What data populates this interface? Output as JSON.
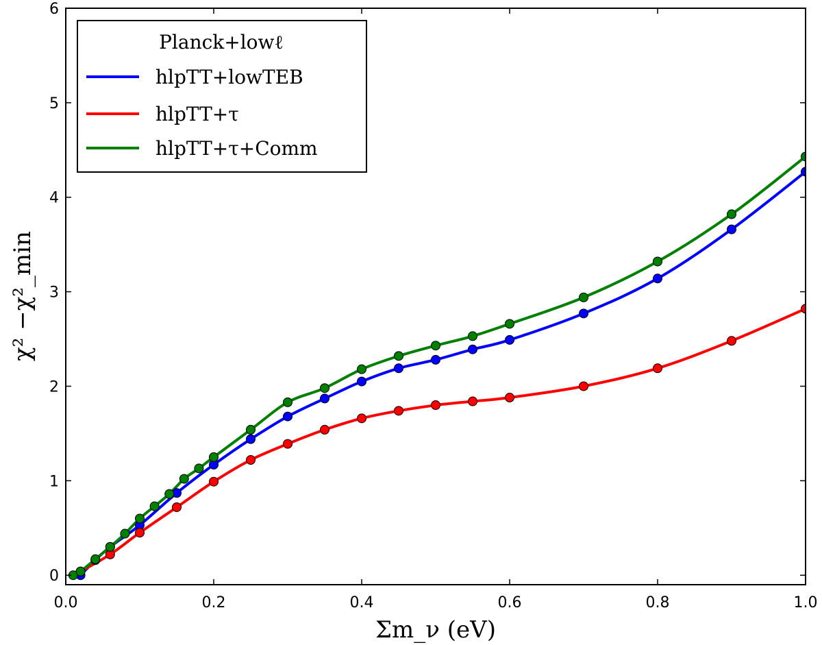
{
  "chart_data": {
    "type": "line",
    "title": "",
    "xlabel": "Σm_ν (eV)",
    "ylabel": "χ² −χ²_min",
    "xlim": [
      0.0,
      1.0
    ],
    "ylim": [
      -0.1,
      6.0
    ],
    "xticks": [
      0.0,
      0.2,
      0.4,
      0.6,
      0.8,
      1.0
    ],
    "xtick_labels": [
      "0.0",
      "0.2",
      "0.4",
      "0.6",
      "0.8",
      "1.0"
    ],
    "yticks": [
      0,
      1,
      2,
      3,
      4,
      5,
      6
    ],
    "ytick_labels": [
      "0",
      "1",
      "2",
      "3",
      "4",
      "5",
      "6"
    ],
    "grid": false,
    "legend": {
      "title": "Planck+lowℓ",
      "placement": "top-left"
    },
    "series": [
      {
        "name": "hlpTT+lowTEB",
        "color": "#0000ff",
        "x": [
          0.02,
          0.04,
          0.06,
          0.1,
          0.15,
          0.2,
          0.25,
          0.3,
          0.35,
          0.4,
          0.45,
          0.5,
          0.55,
          0.6,
          0.7,
          0.8,
          0.9,
          1.0
        ],
        "values": [
          0.0,
          0.16,
          0.3,
          0.53,
          0.87,
          1.17,
          1.44,
          1.68,
          1.87,
          2.05,
          2.19,
          2.28,
          2.39,
          2.49,
          2.77,
          3.14,
          3.66,
          4.27
        ]
      },
      {
        "name": "hlpTT+τ",
        "color": "#ff0000",
        "x": [
          0.02,
          0.06,
          0.1,
          0.15,
          0.2,
          0.25,
          0.3,
          0.35,
          0.4,
          0.45,
          0.5,
          0.55,
          0.6,
          0.7,
          0.8,
          0.9,
          1.0
        ],
        "values": [
          0.04,
          0.22,
          0.45,
          0.72,
          0.99,
          1.22,
          1.39,
          1.54,
          1.66,
          1.74,
          1.8,
          1.84,
          1.88,
          2.0,
          2.19,
          2.48,
          2.82
        ]
      },
      {
        "name": "hlpTT+τ+Comm",
        "color": "#008000",
        "x": [
          0.01,
          0.02,
          0.04,
          0.06,
          0.08,
          0.1,
          0.12,
          0.14,
          0.16,
          0.18,
          0.2,
          0.25,
          0.3,
          0.35,
          0.4,
          0.45,
          0.5,
          0.55,
          0.6,
          0.7,
          0.8,
          0.9,
          1.0
        ],
        "values": [
          0.0,
          0.04,
          0.17,
          0.3,
          0.44,
          0.6,
          0.73,
          0.86,
          1.02,
          1.13,
          1.25,
          1.54,
          1.83,
          1.98,
          2.18,
          2.32,
          2.43,
          2.53,
          2.66,
          2.94,
          3.32,
          3.82,
          4.43
        ]
      }
    ]
  }
}
